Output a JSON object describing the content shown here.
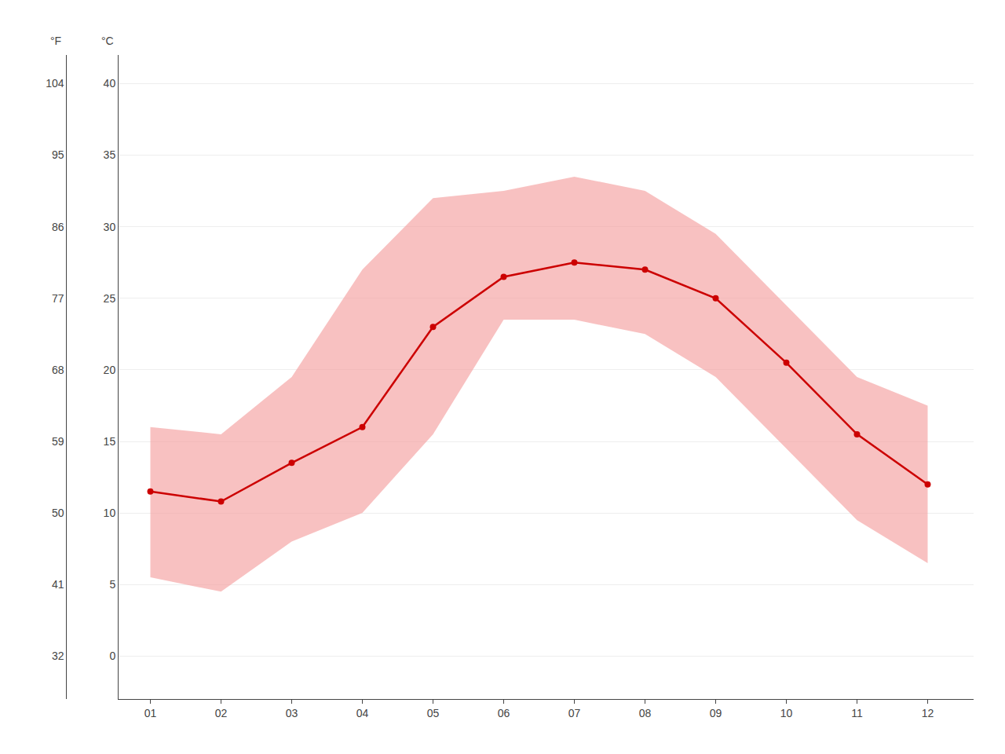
{
  "chart_data": {
    "type": "line",
    "x": [
      1,
      2,
      3,
      4,
      5,
      6,
      7,
      8,
      9,
      10,
      11,
      12
    ],
    "xlim": [
      0.55,
      12.65
    ],
    "xticks": [
      {
        "value": 1,
        "label": "01"
      },
      {
        "value": 2,
        "label": "02"
      },
      {
        "value": 3,
        "label": "03"
      },
      {
        "value": 4,
        "label": "04"
      },
      {
        "value": 5,
        "label": "05"
      },
      {
        "value": 6,
        "label": "06"
      },
      {
        "value": 7,
        "label": "07"
      },
      {
        "value": 8,
        "label": "08"
      },
      {
        "value": 9,
        "label": "09"
      },
      {
        "value": 10,
        "label": "10"
      },
      {
        "value": 11,
        "label": "11"
      },
      {
        "value": 12,
        "label": "12"
      }
    ],
    "ylim": [
      -3,
      42
    ],
    "yticks": [
      0,
      5,
      10,
      15,
      20,
      25,
      30,
      35,
      40
    ],
    "y2lim": [
      26.6,
      107.6
    ],
    "y2ticks": [
      32,
      41,
      50,
      59,
      68,
      77,
      86,
      95,
      104
    ],
    "ylabel": "°C",
    "y2label": "°F",
    "grid": true,
    "series": [
      {
        "type": "range",
        "color": "#f5a0a0",
        "low": [
          5.5,
          4.5,
          8.0,
          10.0,
          15.5,
          23.5,
          23.5,
          22.5,
          19.5,
          14.5,
          9.5,
          6.5
        ],
        "high": [
          16.0,
          15.5,
          19.5,
          27.0,
          32.0,
          32.5,
          33.5,
          32.5,
          29.5,
          24.5,
          19.5,
          17.5
        ]
      },
      {
        "type": "line",
        "color": "#cc0000",
        "marker": "circle",
        "values": [
          11.5,
          10.8,
          13.5,
          16.0,
          23.0,
          26.5,
          27.5,
          27.0,
          25.0,
          20.5,
          15.5,
          12.0
        ]
      }
    ]
  }
}
